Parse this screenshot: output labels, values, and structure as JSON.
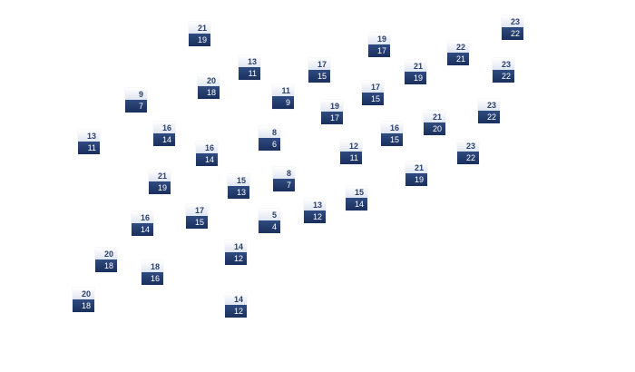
{
  "colors": {
    "top_fill": "#eef2f8",
    "top_text": "#2b3f6b",
    "bottom_fill": "#23396b",
    "bottom_text": "#ffffff"
  },
  "nodes": [
    {
      "top": "21",
      "bottom": "19"
    },
    {
      "top": "13",
      "bottom": "11"
    },
    {
      "top": "17",
      "bottom": "15"
    },
    {
      "top": "19",
      "bottom": "17"
    },
    {
      "top": "22",
      "bottom": "21"
    },
    {
      "top": "23",
      "bottom": "22"
    },
    {
      "top": "23",
      "bottom": "22"
    },
    {
      "top": "21",
      "bottom": "19"
    },
    {
      "top": "20",
      "bottom": "18"
    },
    {
      "top": "9",
      "bottom": "7"
    },
    {
      "top": "11",
      "bottom": "9"
    },
    {
      "top": "17",
      "bottom": "15"
    },
    {
      "top": "19",
      "bottom": "17"
    },
    {
      "top": "23",
      "bottom": "22"
    },
    {
      "top": "21",
      "bottom": "20"
    },
    {
      "top": "16",
      "bottom": "14"
    },
    {
      "top": "8",
      "bottom": "6"
    },
    {
      "top": "16",
      "bottom": "15"
    },
    {
      "top": "13",
      "bottom": "11"
    },
    {
      "top": "16",
      "bottom": "14"
    },
    {
      "top": "12",
      "bottom": "11"
    },
    {
      "top": "23",
      "bottom": "22"
    },
    {
      "top": "21",
      "bottom": "19"
    },
    {
      "top": "8",
      "bottom": "7"
    },
    {
      "top": "21",
      "bottom": "19"
    },
    {
      "top": "15",
      "bottom": "13"
    },
    {
      "top": "15",
      "bottom": "14"
    },
    {
      "top": "17",
      "bottom": "15"
    },
    {
      "top": "13",
      "bottom": "12"
    },
    {
      "top": "5",
      "bottom": "4"
    },
    {
      "top": "16",
      "bottom": "14"
    },
    {
      "top": "14",
      "bottom": "12"
    },
    {
      "top": "20",
      "bottom": "18"
    },
    {
      "top": "18",
      "bottom": "16"
    },
    {
      "top": "20",
      "bottom": "18"
    },
    {
      "top": "14",
      "bottom": "12"
    }
  ]
}
